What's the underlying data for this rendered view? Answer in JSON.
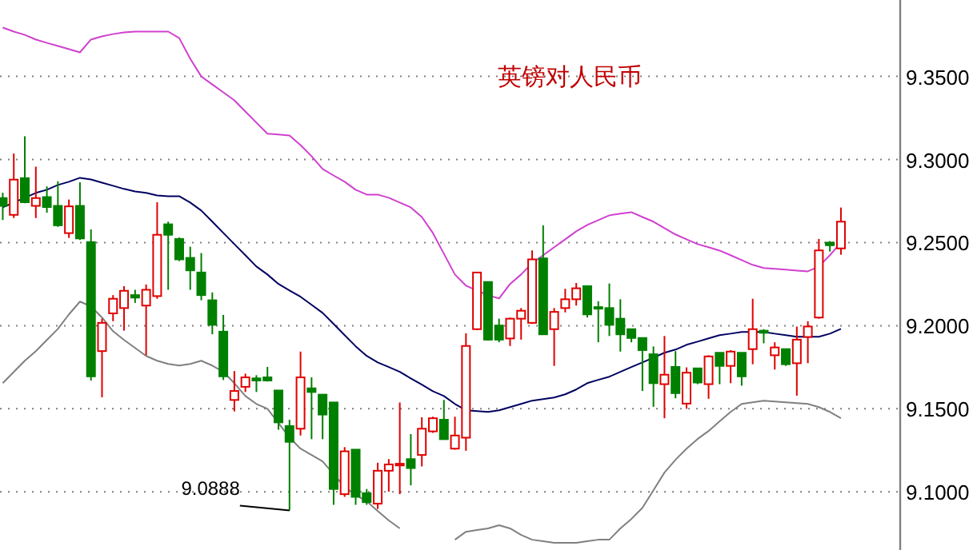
{
  "chart_data": {
    "type": "candlestick",
    "title": "英镑对人民币",
    "categories": [
      null,
      null,
      null,
      null,
      null,
      null,
      null,
      null,
      null,
      null,
      null,
      null,
      null,
      null,
      null,
      null,
      null,
      null,
      null,
      null,
      null,
      null,
      null,
      null,
      null,
      null,
      null,
      null,
      null,
      null,
      null,
      null,
      null,
      null,
      null,
      null,
      null,
      null,
      null,
      null,
      null,
      null,
      null,
      null,
      null,
      null,
      null,
      null,
      null,
      null,
      null,
      null,
      null,
      null,
      null,
      null,
      null,
      null,
      null,
      null,
      null,
      null,
      null,
      null,
      null,
      null,
      null,
      null,
      null,
      null,
      null,
      null,
      null,
      null,
      null,
      null,
      null
    ],
    "ohlc": [
      [
        9.2768,
        9.28,
        9.2636,
        9.2721
      ],
      [
        9.2667,
        9.3036,
        9.2648,
        9.2879
      ],
      [
        9.2888,
        9.314,
        9.2737,
        9.2743
      ],
      [
        9.2721,
        9.2957,
        9.2648,
        9.2768
      ],
      [
        9.2774,
        9.2838,
        9.268,
        9.2714
      ],
      [
        9.2721,
        9.2869,
        9.2595,
        9.2604
      ],
      [
        9.2557,
        9.2759,
        9.2528,
        9.2718
      ],
      [
        9.2721,
        9.2863,
        9.2516,
        9.2525
      ],
      [
        9.2503,
        9.2579,
        9.167,
        9.1695
      ],
      [
        9.1847,
        9.2042,
        9.1569,
        9.2017
      ],
      [
        9.2074,
        9.2184,
        9.2027,
        9.2162
      ],
      [
        9.2106,
        9.2238,
        9.197,
        9.221
      ],
      [
        9.2184,
        9.2216,
        9.2137,
        9.2169
      ],
      [
        9.2121,
        9.2248,
        9.1822,
        9.2216
      ],
      [
        9.2178,
        9.2743,
        9.2162,
        9.2547
      ],
      [
        9.261,
        9.2626,
        9.2216,
        9.2547
      ],
      [
        9.2522,
        9.2531,
        9.2389,
        9.2399
      ],
      [
        9.2408,
        9.2475,
        9.2216,
        9.2333
      ],
      [
        9.232,
        9.2437,
        9.2153,
        9.2184
      ],
      [
        9.2153,
        9.22,
        9.1948,
        9.2005
      ],
      [
        9.1964,
        9.2065,
        9.1673,
        9.1695
      ],
      [
        9.1553,
        9.1727,
        9.1484,
        9.1607
      ],
      [
        9.1632,
        9.1711,
        9.1601,
        9.1689
      ],
      [
        9.1683,
        9.1702,
        9.1601,
        9.167
      ],
      [
        9.1689,
        9.1752,
        9.1664,
        9.167
      ],
      [
        9.161,
        9.161,
        9.1374,
        9.1418
      ],
      [
        9.1396,
        9.1434,
        9.0888,
        9.1301
      ],
      [
        9.138,
        9.1844,
        9.1339,
        9.1689
      ],
      [
        9.1623,
        9.1689,
        9.1317,
        9.1601
      ],
      [
        9.1585,
        9.1585,
        9.1317,
        9.1465
      ],
      [
        9.1538,
        9.1538,
        9.0922,
        9.1017
      ],
      [
        9.0986,
        9.1269,
        9.097,
        9.1244
      ],
      [
        9.1254,
        9.1254,
        9.0922,
        9.097
      ],
      [
        9.0992,
        9.1017,
        9.0922,
        9.0938
      ],
      [
        9.0929,
        9.1175,
        9.0897,
        9.1127
      ],
      [
        9.1127,
        9.1197,
        9.1001,
        9.1165
      ],
      [
        9.1159,
        9.1538,
        9.0986,
        9.1169
      ],
      [
        9.1197,
        9.1348,
        9.1039,
        9.1143
      ],
      [
        9.1222,
        9.1449,
        9.1153,
        9.138
      ],
      [
        9.1364,
        9.1452,
        9.1355,
        9.1443
      ],
      [
        9.1434,
        9.1553,
        9.1317,
        9.1317
      ],
      [
        9.126,
        9.1452,
        9.1254,
        9.1339
      ],
      [
        9.1326,
        9.1954,
        9.1247,
        9.1878
      ],
      [
        9.1979,
        9.232,
        9.1973,
        9.232
      ],
      [
        9.2263,
        9.2263,
        9.191,
        9.1916
      ],
      [
        9.2001,
        9.2042,
        9.19,
        9.1916
      ],
      [
        9.1923,
        9.2049,
        9.1878,
        9.2042
      ],
      [
        9.2042,
        9.2106,
        9.1916,
        9.209
      ],
      [
        9.2017,
        9.2453,
        9.2011,
        9.2399
      ],
      [
        9.2405,
        9.2604,
        9.1948,
        9.1948
      ],
      [
        9.1979,
        9.2106,
        9.1758,
        9.2083
      ],
      [
        9.2106,
        9.2222,
        9.208,
        9.2159
      ],
      [
        9.2159,
        9.2257,
        9.2121,
        9.2225
      ],
      [
        9.2238,
        9.2238,
        9.2049,
        9.2068
      ],
      [
        9.2112,
        9.2147,
        9.19,
        9.2106
      ],
      [
        9.2106,
        9.2254,
        9.1938,
        9.2005
      ],
      [
        9.2042,
        9.2159,
        9.1844,
        9.1948
      ],
      [
        9.1979,
        9.1979,
        9.19,
        9.1926
      ],
      [
        9.1926,
        9.1926,
        9.1607,
        9.1853
      ],
      [
        9.1828,
        9.1875,
        9.1512,
        9.1654
      ],
      [
        9.1648,
        9.1938,
        9.1443,
        9.1705
      ],
      [
        9.1752,
        9.1847,
        9.1563,
        9.1594
      ],
      [
        9.1531,
        9.1749,
        9.15,
        9.1717
      ],
      [
        9.1743,
        9.1743,
        9.1648,
        9.1658
      ],
      [
        9.1648,
        9.1822,
        9.156,
        9.1815
      ],
      [
        9.1837,
        9.1837,
        9.1648,
        9.1758
      ],
      [
        9.1758,
        9.1853,
        9.1654,
        9.1844
      ],
      [
        9.1837,
        9.1837,
        9.1639,
        9.1695
      ],
      [
        9.1859,
        9.2162,
        9.1768,
        9.1979
      ],
      [
        9.197,
        9.1979,
        9.1894,
        9.1957
      ],
      [
        9.1822,
        9.19,
        9.1736,
        9.1869
      ],
      [
        9.1859,
        9.1859,
        9.1758,
        9.1768
      ],
      [
        9.1774,
        9.1995,
        9.1579,
        9.1916
      ],
      [
        9.1932,
        9.2027,
        9.1774,
        9.1995
      ],
      [
        9.2049,
        9.2522,
        9.2042,
        9.2453
      ],
      [
        9.25,
        9.2509,
        9.2446,
        9.2484
      ],
      [
        9.2465,
        9.2711,
        9.2427,
        9.2626
      ]
    ],
    "colors": [
      "#008000",
      "#e00000",
      "#008000",
      "#e00000",
      "#008000",
      "#008000",
      "#e00000",
      "#008000",
      "#008000",
      "#e00000",
      "#e00000",
      "#e00000",
      "#008000",
      "#e00000",
      "#e00000",
      "#008000",
      "#008000",
      "#008000",
      "#008000",
      "#008000",
      "#008000",
      "#e00000",
      "#e00000",
      "#008000",
      "#008000",
      "#008000",
      "#008000",
      "#e00000",
      "#008000",
      "#008000",
      "#008000",
      "#e00000",
      "#008000",
      "#008000",
      "#e00000",
      "#e00000",
      "#e00000",
      "#008000",
      "#e00000",
      "#e00000",
      "#008000",
      "#e00000",
      "#e00000",
      "#e00000",
      "#008000",
      "#008000",
      "#e00000",
      "#e00000",
      "#e00000",
      "#008000",
      "#e00000",
      "#e00000",
      "#e00000",
      "#008000",
      "#008000",
      "#008000",
      "#008000",
      "#008000",
      "#008000",
      "#008000",
      "#e00000",
      "#008000",
      "#e00000",
      "#008000",
      "#e00000",
      "#008000",
      "#e00000",
      "#008000",
      "#e00000",
      "#008000",
      "#e00000",
      "#008000",
      "#e00000",
      "#e00000",
      "#e00000",
      "#008000",
      "#e00000"
    ],
    "series": [
      {
        "type": "line",
        "color": "#d040d0",
        "values": [
          9.3794,
          9.377,
          9.375,
          9.3722,
          9.3702,
          9.3683,
          9.3664,
          9.3645,
          9.3722,
          9.3741,
          9.3755,
          9.3765,
          9.377,
          9.377,
          9.377,
          9.377,
          9.3731,
          9.3606,
          9.35,
          9.3452,
          9.3404,
          9.3356,
          9.3289,
          9.3222,
          9.3155,
          9.315,
          9.3145,
          9.3087,
          9.302,
          9.2943,
          9.2904,
          9.2866,
          9.2818,
          9.2789,
          9.2789,
          9.277,
          9.2741,
          9.2712,
          9.2654,
          9.2558,
          9.2433,
          9.2308,
          9.2241,
          9.2212,
          9.2183,
          9.2164,
          9.2251,
          9.2308,
          9.2376,
          9.2424,
          9.2472,
          9.252,
          9.2568,
          9.2606,
          9.2635,
          9.2664,
          9.2674,
          9.2683,
          9.2654,
          9.2626,
          9.2587,
          9.2549,
          9.252,
          9.2491,
          9.2472,
          9.2452,
          9.2424,
          9.2395,
          9.2366,
          9.2347,
          9.2342,
          9.2337,
          9.2332,
          9.2327,
          9.2356,
          9.2424,
          9.25
        ]
      },
      {
        "type": "line",
        "color": "#000060",
        "values": [
          9.2712,
          9.2741,
          9.277,
          9.2799,
          9.2818,
          9.2847,
          9.2866,
          9.289,
          9.288,
          9.2861,
          9.2842,
          9.2823,
          9.2808,
          9.2799,
          9.2784,
          9.2779,
          9.2779,
          9.2741,
          9.2693,
          9.2626,
          9.2558,
          9.2491,
          9.2424,
          9.2356,
          9.2308,
          9.2251,
          9.2212,
          9.2174,
          9.2126,
          9.2077,
          9.201,
          9.1943,
          9.1876,
          9.1818,
          9.1779,
          9.1751,
          9.1722,
          9.1683,
          9.1645,
          9.1606,
          9.1577,
          9.1529,
          9.1491,
          9.1486,
          9.1481,
          9.1491,
          9.151,
          9.1529,
          9.1549,
          9.1558,
          9.1568,
          9.1587,
          9.1616,
          9.1654,
          9.1674,
          9.1693,
          9.1722,
          9.1751,
          9.1779,
          9.1808,
          9.1837,
          9.1856,
          9.1885,
          9.1904,
          9.1924,
          9.1943,
          9.1952,
          9.1962,
          9.1962,
          9.1962,
          9.1952,
          9.1943,
          9.1933,
          9.1933,
          9.1933,
          9.1952,
          9.1981
        ]
      },
      {
        "type": "line",
        "color": "#808080",
        "values": [
          9.1654,
          9.1722,
          9.1789,
          9.1847,
          9.1914,
          9.1981,
          9.2068,
          9.2145,
          9.2116,
          9.2049,
          9.1967,
          9.1914,
          9.1866,
          9.1818,
          9.1789,
          9.177,
          9.176,
          9.177,
          9.1789,
          9.176,
          9.1722,
          9.1654,
          9.1577,
          9.1529,
          9.15,
          9.1414,
          9.1327,
          9.126,
          9.1222,
          9.1183,
          9.1106,
          9.1029,
          9.0981,
          9.0943,
          9.0885,
          9.0828,
          9.078,
          null,
          null,
          null,
          null,
          9.0712,
          9.076,
          9.077,
          9.078,
          9.0799,
          9.078,
          9.0741,
          9.0712,
          9.0703,
          9.0693,
          9.0693,
          9.0693,
          9.0703,
          9.0712,
          9.0712,
          9.078,
          9.0837,
          9.0904,
          9.101,
          9.1116,
          9.1193,
          9.126,
          9.1318,
          9.1366,
          9.1424,
          9.1481,
          9.1529,
          9.1539,
          9.1549,
          9.1544,
          9.1539,
          9.1534,
          9.1529,
          9.151,
          9.1481,
          9.1443
        ]
      }
    ],
    "ylim": [
      9.065,
      9.396
    ],
    "yticks": [
      {
        "value": 9.1,
        "label": "9.1000"
      },
      {
        "value": 9.15,
        "label": "9.1500"
      },
      {
        "value": 9.2,
        "label": "9.2000"
      },
      {
        "value": 9.25,
        "label": "9.2500"
      },
      {
        "value": 9.3,
        "label": "9.3000"
      },
      {
        "value": 9.35,
        "label": "9.3500"
      }
    ],
    "grid": "y",
    "annotations": [
      "9.0888"
    ]
  }
}
